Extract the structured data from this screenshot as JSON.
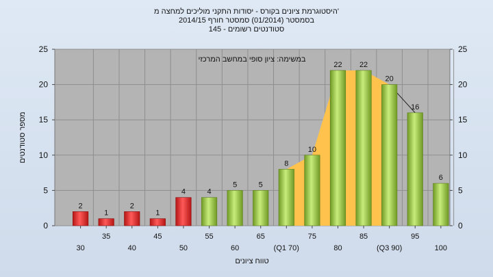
{
  "chart_data": {
    "type": "bar",
    "title_lines": [
      "היסטוגרמת ציונים בקורס - יסודות התקני מוליכים למחצה מ'",
      "בסמסטר  (01/2014)  סמסטר חורף 2014/15",
      "סטודנטים רשומים - 145"
    ],
    "annotation": "במשימה: ציון סופי במחשב המרכזי",
    "xlabel": "טווח ציונים",
    "ylabel": "מספר סטודנטים",
    "ylim": [
      0,
      25
    ],
    "yticks": [
      0,
      5,
      10,
      15,
      20,
      25
    ],
    "grid": true,
    "categories": [
      "30",
      "35",
      "40",
      "45",
      "50",
      "55",
      "60",
      "65",
      "(Q1 70)",
      "75",
      "80",
      "85",
      "(Q3 90)",
      "95",
      "100"
    ],
    "values": [
      2,
      1,
      2,
      1,
      4,
      4,
      5,
      5,
      8,
      10,
      22,
      22,
      20,
      16,
      6
    ],
    "data_labels": [
      "2",
      "1",
      "2",
      "1",
      "4",
      "4",
      "5",
      "5",
      "8",
      "10",
      "22",
      "22",
      "20",
      "16",
      "6"
    ],
    "bar_colors": [
      "#e02828",
      "#e02828",
      "#e02828",
      "#e02828",
      "#e02828",
      "#9ccc45",
      "#9ccc45",
      "#9ccc45",
      "#9ccc45",
      "#9ccc45",
      "#9ccc45",
      "#9ccc45",
      "#9ccc45",
      "#9ccc45",
      "#9ccc45"
    ],
    "quartile_area": {
      "from": "(Q1 70)",
      "to": "(Q3 90)",
      "color": "#ffc34d"
    },
    "plot_background": "#b4b4b4"
  }
}
